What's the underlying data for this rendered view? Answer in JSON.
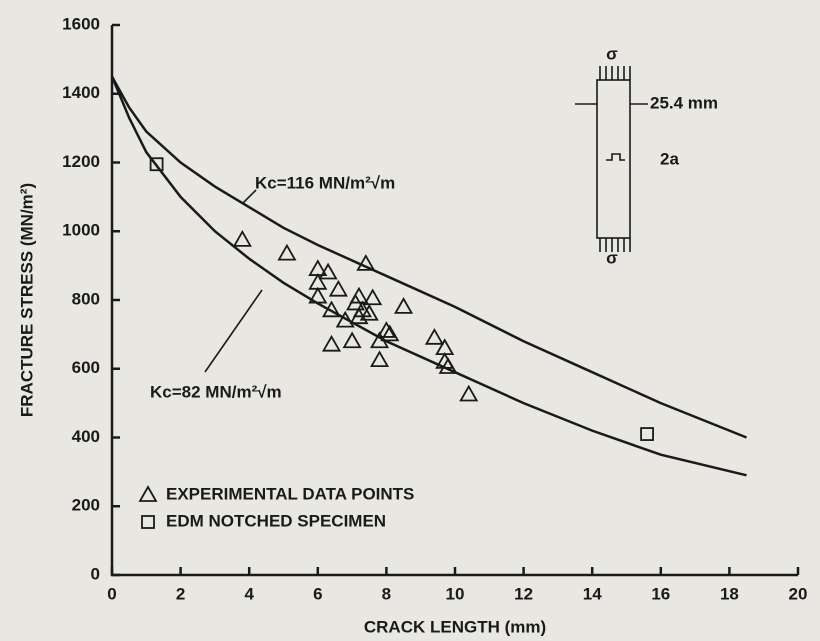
{
  "chart_data": {
    "type": "scatter",
    "xlabel": "CRACK LENGTH (mm)",
    "ylabel": "FRACTURE STRESS (MN/m²)",
    "xlim": [
      0,
      20
    ],
    "xticks": [
      0,
      2,
      4,
      6,
      8,
      10,
      12,
      14,
      16,
      18,
      20
    ],
    "ylim": [
      0,
      1600
    ],
    "yticks": [
      0,
      200,
      400,
      600,
      800,
      1000,
      1200,
      1400,
      1600
    ],
    "color": "#1a1a1a",
    "series": [
      {
        "name": "EXPERIMENTAL DATA POINTS",
        "marker": "triangle",
        "x": [
          3.8,
          5.1,
          6.0,
          6.3,
          6.0,
          6.6,
          6.0,
          6.4,
          6.8,
          7.1,
          7.2,
          7.4,
          7.6,
          7.3,
          7.5,
          7.2,
          7.0,
          6.4,
          7.8,
          8.0,
          8.1,
          7.8,
          8.5,
          9.4,
          9.7,
          9.7,
          9.8,
          10.4
        ],
        "values": [
          975,
          935,
          890,
          880,
          850,
          830,
          810,
          770,
          740,
          790,
          810,
          905,
          805,
          770,
          760,
          750,
          680,
          670,
          680,
          710,
          700,
          625,
          780,
          690,
          660,
          620,
          605,
          525
        ]
      },
      {
        "name": "EDM NOTCHED SPECIMEN",
        "marker": "square",
        "x": [
          1.3,
          15.6
        ],
        "values": [
          1195,
          410
        ]
      }
    ],
    "curves": [
      {
        "label": "Kc=116 MN/m²√m",
        "x": [
          0,
          0.5,
          1,
          2,
          3,
          4,
          5,
          6,
          8,
          10,
          12,
          14,
          16,
          18.5
        ],
        "values": [
          1450,
          1360,
          1290,
          1200,
          1130,
          1070,
          1010,
          960,
          870,
          780,
          680,
          590,
          500,
          400
        ]
      },
      {
        "label": "Kc=82 MN/m²√m",
        "x": [
          0,
          0.5,
          1,
          2,
          3,
          4,
          5,
          6,
          8,
          10,
          12,
          14,
          16,
          18.5
        ],
        "values": [
          1450,
          1330,
          1230,
          1100,
          1000,
          920,
          850,
          790,
          680,
          590,
          500,
          420,
          350,
          290
        ]
      }
    ],
    "diagram": {
      "stress": "σ",
      "width": "25.4 mm",
      "crack": "2a"
    }
  }
}
